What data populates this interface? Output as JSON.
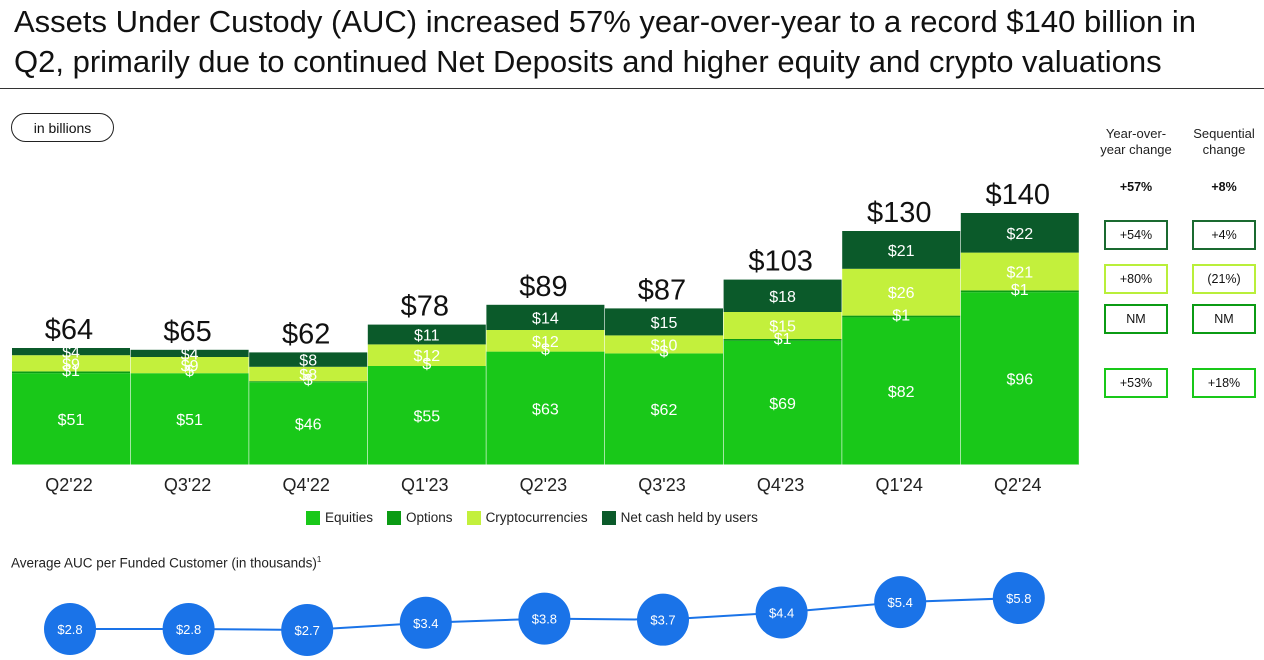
{
  "title": "Assets Under Custody (AUC) increased 57% year-over-year to a record $140 billion in Q2, primarily due to continued Net Deposits and higher equity and crypto valuations",
  "units_label": "in billions",
  "colors": {
    "equities": "#19c819",
    "options": "#0b9b14",
    "crypto": "#c3f03c",
    "net_cash": "#0b5a2a",
    "avg_line": "#1a73e8"
  },
  "chart_data": [
    {
      "type": "bar",
      "stacked": true,
      "categories": [
        "Q2'22",
        "Q3'22",
        "Q4'22",
        "Q1'23",
        "Q2'23",
        "Q3'23",
        "Q4'23",
        "Q1'24",
        "Q2'24"
      ],
      "series": [
        {
          "name": "Equities",
          "values": [
            51,
            51,
            46,
            55,
            63,
            62,
            69,
            82,
            96
          ]
        },
        {
          "name": "Options",
          "values": [
            1,
            null,
            0,
            null,
            null,
            null,
            1,
            1,
            1
          ]
        },
        {
          "name": "Cryptocurrencies",
          "values": [
            9,
            9,
            8,
            12,
            12,
            10,
            15,
            26,
            21
          ]
        },
        {
          "name": "Net cash held by users",
          "values": [
            4,
            4,
            8,
            11,
            14,
            15,
            18,
            21,
            22
          ]
        }
      ],
      "segment_labels": {
        "Equities": [
          "$51",
          "$51",
          "$46",
          "$55",
          "$63",
          "$62",
          "$69",
          "$82",
          "$96"
        ],
        "Options": [
          "$1",
          "$",
          "$",
          "$",
          "$",
          "$",
          "$1",
          "$1",
          "$1"
        ],
        "Cryptocurrencies": [
          "$9",
          "$9",
          "$8",
          "$12",
          "$12",
          "$10",
          "$15",
          "$26",
          "$21"
        ],
        "Net cash held by users": [
          "$4",
          "$4",
          "$8",
          "$11",
          "$14",
          "$15",
          "$18",
          "$21",
          "$22"
        ]
      },
      "totals": [
        64,
        65,
        62,
        78,
        89,
        87,
        103,
        130,
        140
      ],
      "total_labels": [
        "$64",
        "$65",
        "$62",
        "$78",
        "$89",
        "$87",
        "$103",
        "$130",
        "$140"
      ],
      "legend": [
        "Equities",
        "Options",
        "Cryptocurrencies",
        "Net cash held by users"
      ],
      "legend_position": "bottom",
      "grid": false,
      "ylim": [
        0,
        150
      ]
    },
    {
      "type": "line",
      "title": "Average AUC per Funded Customer (in thousands)",
      "footnote_marker": "1",
      "categories": [
        "Q2'22",
        "Q3'22",
        "Q4'22",
        "Q1'23",
        "Q2'23",
        "Q3'23",
        "Q4'23",
        "Q1'24",
        "Q2'24"
      ],
      "values": [
        2.8,
        2.8,
        2.7,
        3.4,
        3.8,
        3.7,
        4.4,
        5.4,
        5.8
      ],
      "labels": [
        "$2.8",
        "$2.8",
        "$2.7",
        "$3.4",
        "$3.8",
        "$3.7",
        "$4.4",
        "$5.4",
        "$5.8"
      ]
    }
  ],
  "side_panel": {
    "yoy_header": "Year-over-year change",
    "seq_header": "Sequential change",
    "totals": {
      "yoy": "+57%",
      "seq": "+8%"
    },
    "rows": [
      {
        "series": "Net cash held by users",
        "yoy": "+54%",
        "seq": "+4%"
      },
      {
        "series": "Cryptocurrencies",
        "yoy": "+80%",
        "seq": "(21%)"
      },
      {
        "series": "Options",
        "yoy": "NM",
        "seq": "NM"
      },
      {
        "series": "Equities",
        "yoy": "+53%",
        "seq": "+18%"
      }
    ]
  }
}
